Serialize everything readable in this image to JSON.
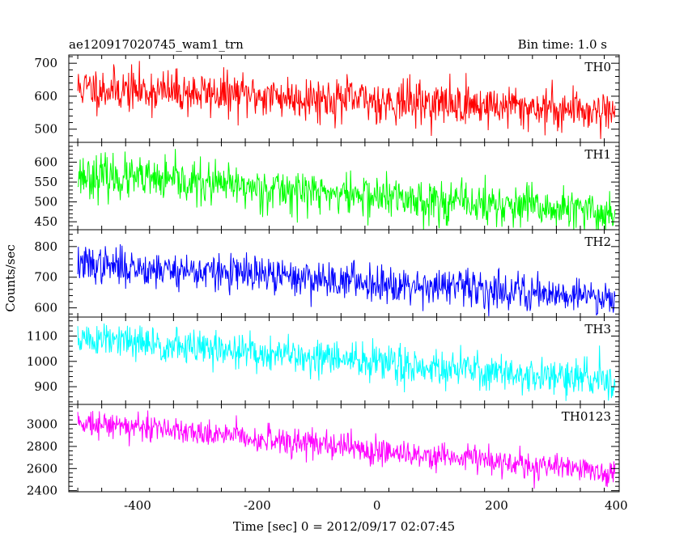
{
  "header": {
    "title": "ae120917020745_wam1_trn",
    "bin_time": "Bin time: 1.0 s"
  },
  "chart_data": {
    "type": "line",
    "xlabel": "Time [sec] 0 = 2012/09/17 02:07:45",
    "ylabel": "Counts/sec",
    "xlim": [
      -515,
      405
    ],
    "x_ticks": [
      -400,
      -200,
      0,
      200,
      400
    ],
    "x_start": -500,
    "x_end": 398,
    "x_step": 1,
    "panels": [
      {
        "name": "TH0",
        "color": "#ff0000",
        "ylim": [
          460,
          725
        ],
        "y_ticks": [
          500,
          600,
          700
        ],
        "trend_start": 625,
        "trend_end": 555,
        "noise_sd": 33,
        "seed": 11
      },
      {
        "name": "TH1",
        "color": "#00ff00",
        "ylim": [
          430,
          650
        ],
        "y_ticks": [
          450,
          500,
          550,
          600
        ],
        "trend_start": 568,
        "trend_end": 470,
        "noise_sd": 27,
        "seed": 23
      },
      {
        "name": "TH2",
        "color": "#0000ff",
        "ylim": [
          570,
          855
        ],
        "y_ticks": [
          600,
          700,
          800
        ],
        "trend_start": 743,
        "trend_end": 635,
        "noise_sd": 30,
        "seed": 37
      },
      {
        "name": "TH3",
        "color": "#00ffff",
        "ylim": [
          830,
          1175
        ],
        "y_ticks": [
          900,
          1000,
          1100
        ],
        "trend_start": 1090,
        "trend_end": 920,
        "noise_sd": 36,
        "seed": 51
      },
      {
        "name": "TH0123",
        "color": "#ff00ff",
        "ylim": [
          2390,
          3180
        ],
        "y_ticks": [
          2400,
          2600,
          2800,
          3000
        ],
        "trend_start": 3030,
        "trend_end": 2560,
        "noise_sd": 62,
        "seed": 73
      }
    ]
  }
}
